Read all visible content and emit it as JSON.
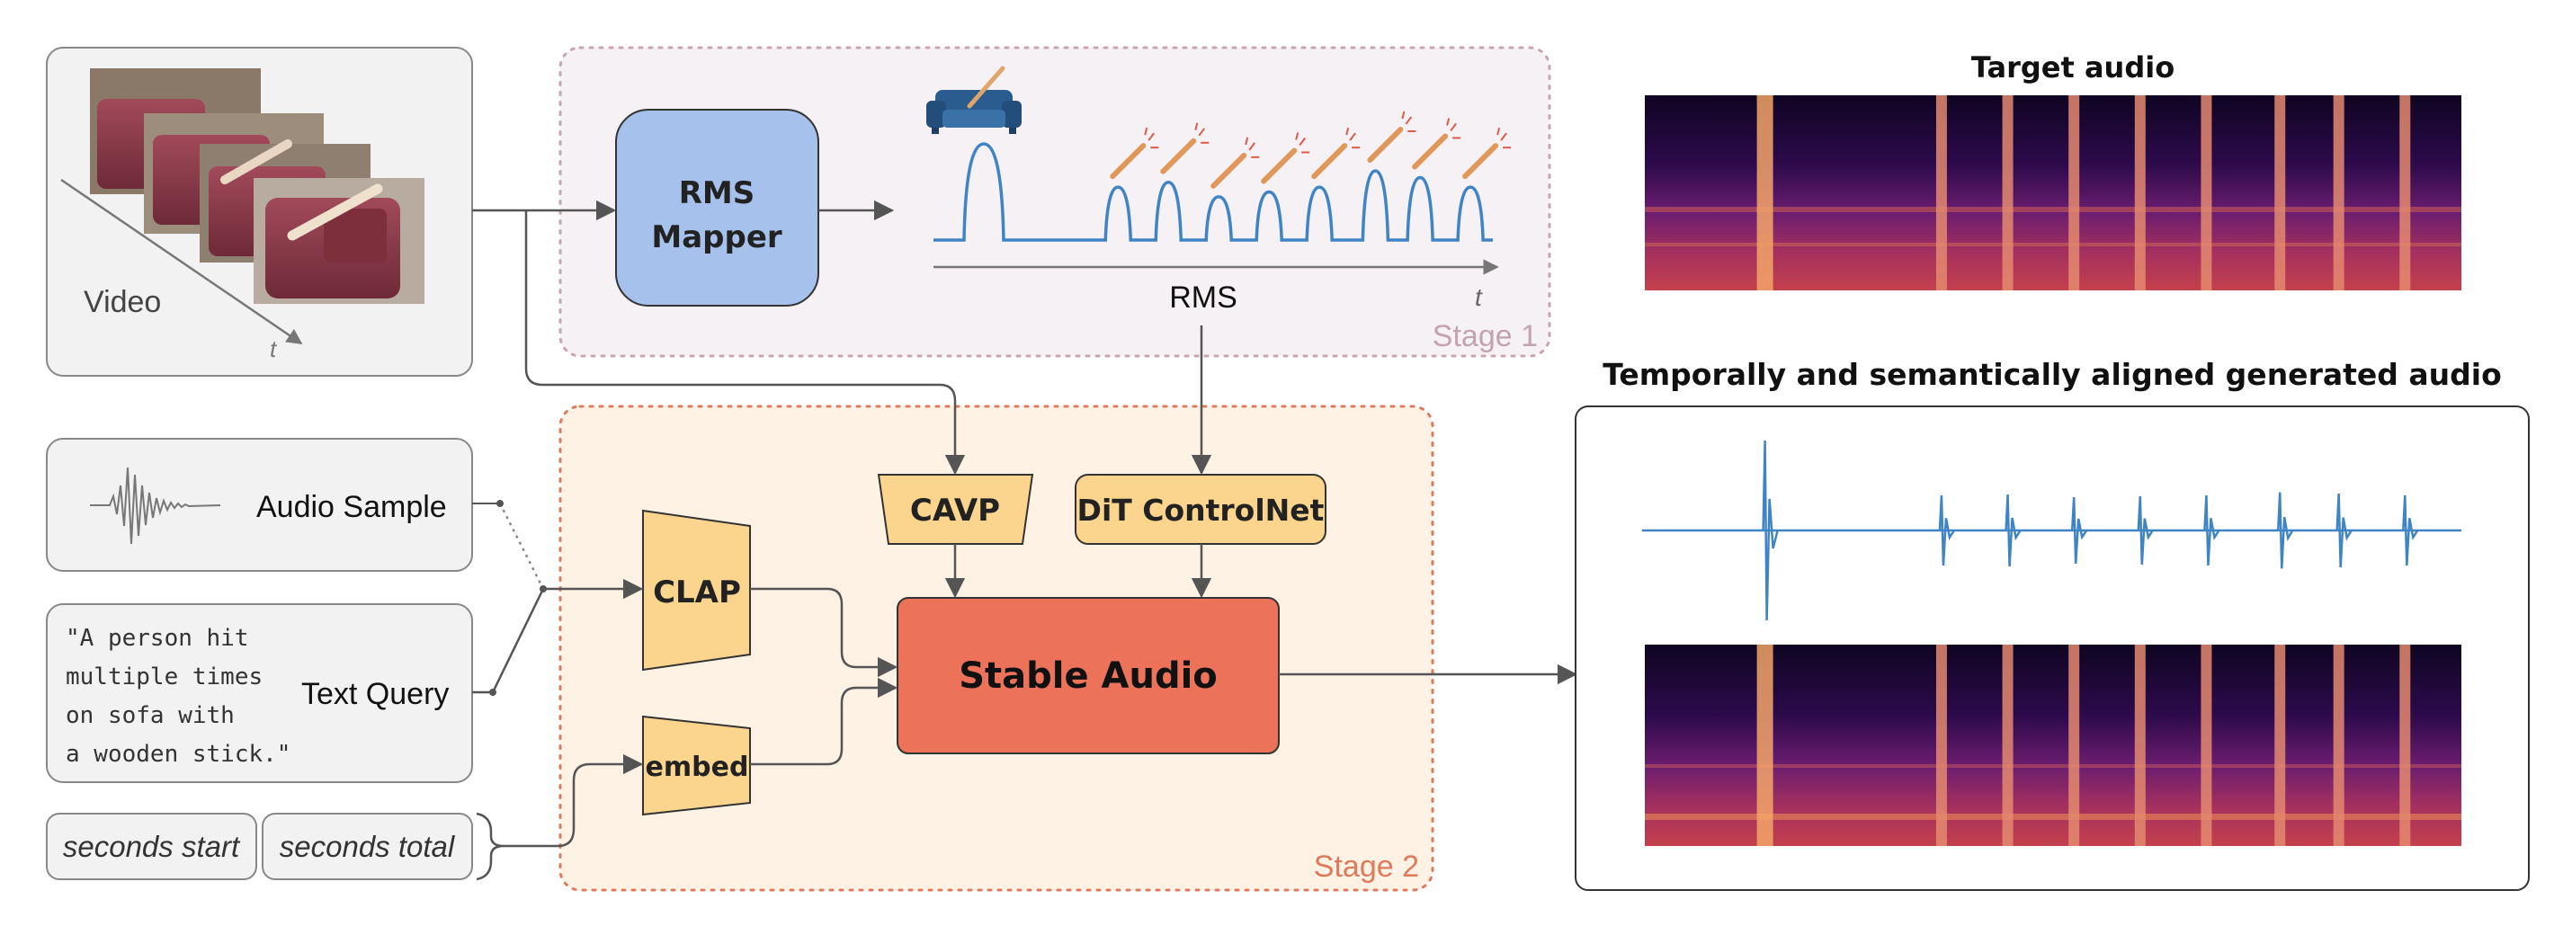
{
  "video": {
    "label": "Video",
    "time_axis": "t"
  },
  "stage1": {
    "label": "Stage 1",
    "rms_mapper": [
      "RMS",
      "Mapper"
    ],
    "rms_axis_label": "RMS",
    "time_axis": "t"
  },
  "stage2": {
    "label": "Stage 2",
    "clap": "CLAP",
    "embed": "embed",
    "cavp": "CAVP",
    "controlnet": "DiT ControlNet",
    "stable_audio": "Stable Audio"
  },
  "inputs": {
    "audio_sample": "Audio Sample",
    "text_query_label": "Text Query",
    "text_query_lines": [
      "\"A person hit",
      "multiple times",
      "on sofa with",
      "a wooden stick.\""
    ],
    "seconds_start": "seconds start",
    "seconds_total": "seconds total"
  },
  "outputs": {
    "target_title": "Target audio",
    "generated_title": "Temporally and semantically aligned generated audio"
  },
  "colors": {
    "stage1_border": "#c9a5b2",
    "stage1_fill": "#f6f1f4",
    "stage1_text": "#c3a3b1",
    "stage2_border": "#e07a5c",
    "stage2_fill": "#fdf2e4",
    "stage2_text": "#e07a5c",
    "rms_mapper_fill": "#a5c1ec",
    "module_fill": "#fbd58e",
    "stable_audio_fill": "#ec735a",
    "waveform": "#3f84c5",
    "arrow": "#555555"
  },
  "chart_data": {
    "type": "line",
    "title": "RMS",
    "xlabel": "t",
    "ylabel": "",
    "peaks": [
      {
        "t": 0.09,
        "amplitude": 1.0
      },
      {
        "t": 0.33,
        "amplitude": 0.55
      },
      {
        "t": 0.42,
        "amplitude": 0.6
      },
      {
        "t": 0.51,
        "amplitude": 0.45
      },
      {
        "t": 0.6,
        "amplitude": 0.5
      },
      {
        "t": 0.69,
        "amplitude": 0.55
      },
      {
        "t": 0.79,
        "amplitude": 0.72
      },
      {
        "t": 0.87,
        "amplitude": 0.65
      },
      {
        "t": 0.96,
        "amplitude": 0.55
      }
    ]
  }
}
